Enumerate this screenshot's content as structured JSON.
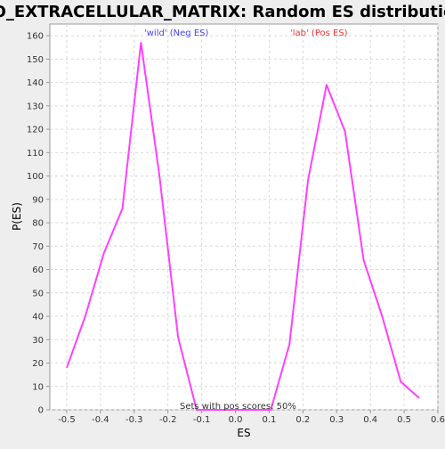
{
  "chart_data": {
    "type": "line",
    "title": "GO_EXTRACELLULAR_MATRIX: Random ES distribution",
    "xlabel": "ES",
    "ylabel": "P(ES)",
    "xlim": [
      -0.55,
      0.6
    ],
    "ylim": [
      0,
      165
    ],
    "xticks": [
      "-0.5",
      "-0.4",
      "-0.3",
      "-0.2",
      "-0.1",
      "0.0",
      "0.1",
      "0.2",
      "0.3",
      "0.4",
      "0.5",
      "0.6"
    ],
    "xtick_values": [
      -0.5,
      -0.4,
      -0.3,
      -0.2,
      -0.1,
      0.0,
      0.1,
      0.2,
      0.3,
      0.4,
      0.5,
      0.6
    ],
    "yticks": [
      "0",
      "10",
      "20",
      "30",
      "40",
      "50",
      "60",
      "70",
      "80",
      "90",
      "100",
      "110",
      "120",
      "130",
      "140",
      "150",
      "160"
    ],
    "ytick_values": [
      0,
      10,
      20,
      30,
      40,
      50,
      60,
      70,
      80,
      90,
      100,
      110,
      120,
      130,
      140,
      150,
      160
    ],
    "grid": true,
    "series": [
      {
        "color": "#ff40ff",
        "x": [
          -0.5,
          -0.445,
          -0.39,
          -0.335,
          -0.28,
          -0.225,
          -0.17,
          -0.115,
          -0.06,
          -0.005,
          0.05,
          0.105,
          0.16,
          0.215,
          0.27,
          0.325,
          0.38,
          0.435,
          0.49,
          0.545
        ],
        "y": [
          18,
          40,
          67,
          86,
          157,
          100,
          31,
          0,
          0,
          0,
          0,
          0,
          28,
          98,
          139,
          119,
          64,
          40,
          12,
          5
        ]
      }
    ],
    "annotations": {
      "neg_label": "'wild' (Neg ES)",
      "pos_label": "'lab' (Pos ES)",
      "neg_color": "#4444ee",
      "pos_color": "#ee3333",
      "footer": "Sets with pos scores: 50%"
    },
    "colors": {
      "background": "#eeeeee",
      "plot_background": "#ffffff",
      "grid": "#d9d9d9",
      "axis": "#999999"
    }
  }
}
